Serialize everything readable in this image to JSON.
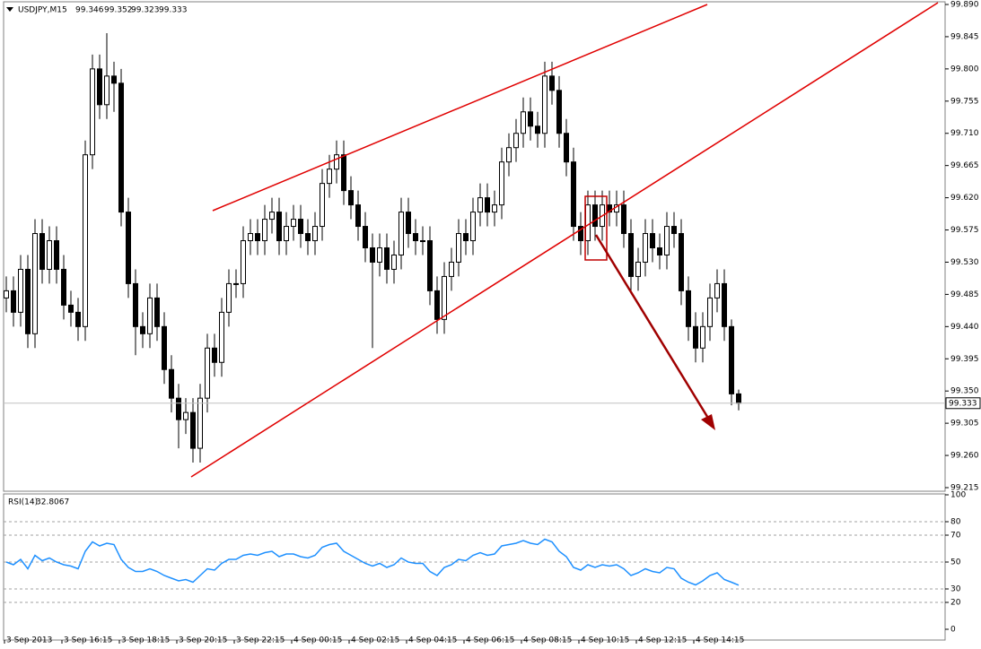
{
  "chart_data": [
    {
      "type": "candlestick",
      "title": "USDJPY,M15",
      "open": [
        99.48,
        99.49,
        99.46,
        99.52,
        99.43,
        99.57,
        99.52,
        99.56,
        99.52,
        99.47,
        99.46,
        99.44,
        99.68,
        99.8,
        99.75,
        99.79,
        99.78,
        99.6,
        99.5,
        99.44,
        99.43,
        99.48,
        99.44,
        99.38,
        99.34,
        99.31,
        99.32,
        99.27,
        99.34,
        99.41,
        99.39,
        99.46,
        99.5,
        99.5,
        99.56,
        99.57,
        99.56,
        99.59,
        99.6,
        99.56,
        99.58,
        99.59,
        99.57,
        99.56,
        99.58,
        99.64,
        99.66,
        99.68,
        99.63,
        99.61,
        99.58,
        99.55,
        99.53,
        99.55,
        99.52,
        99.54,
        99.6,
        99.57,
        99.56,
        99.56,
        99.49,
        99.45,
        99.51,
        99.53,
        99.57,
        99.56,
        99.6,
        99.62,
        99.6,
        99.61,
        99.67,
        99.69,
        99.71,
        99.74,
        99.72,
        99.71,
        99.79,
        99.77,
        99.71,
        99.67,
        99.58,
        99.56,
        99.61,
        99.58,
        99.61,
        99.6,
        99.61,
        99.57,
        99.51,
        99.53,
        99.57,
        99.55,
        99.54,
        99.58,
        99.57,
        99.49,
        99.44,
        99.41,
        99.44,
        99.48,
        99.5,
        99.44,
        99.346
      ],
      "high": [
        99.51,
        99.51,
        99.54,
        99.54,
        99.59,
        99.59,
        99.58,
        99.58,
        99.54,
        99.49,
        99.48,
        99.7,
        99.82,
        99.82,
        99.85,
        99.81,
        99.8,
        99.62,
        99.52,
        99.46,
        99.5,
        99.5,
        99.46,
        99.4,
        99.36,
        99.34,
        99.34,
        99.36,
        99.43,
        99.43,
        99.48,
        99.52,
        99.52,
        99.58,
        99.59,
        99.59,
        99.61,
        99.62,
        99.62,
        99.6,
        99.61,
        99.61,
        99.59,
        99.6,
        99.66,
        99.68,
        99.7,
        99.7,
        99.65,
        99.63,
        99.6,
        99.57,
        99.57,
        99.57,
        99.56,
        99.62,
        99.62,
        99.59,
        99.58,
        99.58,
        99.51,
        99.53,
        99.55,
        99.59,
        99.59,
        99.62,
        99.64,
        99.64,
        99.63,
        99.69,
        99.71,
        99.73,
        99.76,
        99.76,
        99.74,
        99.81,
        99.81,
        99.79,
        99.73,
        99.69,
        99.6,
        99.63,
        99.63,
        99.63,
        99.63,
        99.63,
        99.63,
        99.59,
        99.55,
        99.59,
        99.59,
        99.57,
        99.6,
        99.6,
        99.59,
        99.51,
        99.46,
        99.46,
        99.5,
        99.52,
        99.52,
        99.45,
        99.352
      ],
      "low": [
        99.46,
        99.44,
        99.44,
        99.41,
        99.41,
        99.5,
        99.5,
        99.5,
        99.45,
        99.44,
        99.42,
        99.42,
        99.66,
        99.73,
        99.73,
        99.74,
        99.58,
        99.48,
        99.4,
        99.41,
        99.41,
        99.42,
        99.36,
        99.32,
        99.27,
        99.29,
        99.25,
        99.25,
        99.32,
        99.37,
        99.37,
        99.44,
        99.48,
        99.48,
        99.54,
        99.54,
        99.54,
        99.57,
        99.54,
        99.54,
        99.56,
        99.55,
        99.54,
        99.54,
        99.56,
        99.62,
        99.64,
        99.61,
        99.59,
        99.56,
        99.53,
        99.41,
        99.51,
        99.5,
        99.5,
        99.52,
        99.55,
        99.54,
        99.54,
        99.47,
        99.43,
        99.43,
        99.49,
        99.51,
        99.54,
        99.54,
        99.58,
        99.58,
        99.58,
        99.59,
        99.65,
        99.67,
        99.69,
        99.7,
        99.69,
        99.69,
        99.75,
        99.69,
        99.65,
        99.56,
        99.54,
        99.54,
        99.56,
        99.56,
        99.58,
        99.58,
        99.55,
        99.49,
        99.49,
        99.51,
        99.53,
        99.52,
        99.52,
        99.55,
        99.47,
        99.42,
        99.39,
        99.39,
        99.42,
        99.46,
        99.42,
        99.33,
        99.323
      ],
      "close": [
        99.49,
        99.46,
        99.52,
        99.43,
        99.57,
        99.52,
        99.56,
        99.52,
        99.47,
        99.46,
        99.44,
        99.68,
        99.8,
        99.75,
        99.79,
        99.78,
        99.6,
        99.5,
        99.44,
        99.43,
        99.48,
        99.44,
        99.38,
        99.34,
        99.31,
        99.32,
        99.27,
        99.34,
        99.41,
        99.39,
        99.46,
        99.5,
        99.5,
        99.56,
        99.57,
        99.56,
        99.59,
        99.6,
        99.56,
        99.58,
        99.59,
        99.57,
        99.56,
        99.58,
        99.64,
        99.66,
        99.68,
        99.63,
        99.61,
        99.58,
        99.55,
        99.53,
        99.55,
        99.52,
        99.54,
        99.6,
        99.57,
        99.56,
        99.56,
        99.49,
        99.45,
        99.51,
        99.53,
        99.57,
        99.56,
        99.6,
        99.62,
        99.6,
        99.61,
        99.67,
        99.69,
        99.71,
        99.74,
        99.72,
        99.71,
        99.79,
        99.77,
        99.71,
        99.67,
        99.58,
        99.56,
        99.61,
        99.58,
        99.61,
        99.6,
        99.61,
        99.57,
        99.51,
        99.53,
        99.57,
        99.55,
        99.54,
        99.58,
        99.57,
        99.49,
        99.44,
        99.41,
        99.44,
        99.48,
        99.5,
        99.44,
        99.346,
        99.333
      ],
      "up_color": "#ffffff",
      "down_color": "#000000",
      "border_color": "#000000",
      "ylim": [
        99.215,
        99.89
      ],
      "yticks": [
        {
          "value": 99.89,
          "label": "99.890"
        },
        99.845,
        {
          "value": 99.8,
          "label": "99.800"
        },
        99.755,
        {
          "value": 99.71,
          "label": "99.710"
        },
        99.665,
        {
          "value": 99.62,
          "label": "99.620"
        },
        99.575,
        {
          "value": 99.53,
          "label": "99.530"
        },
        99.485,
        {
          "value": 99.44,
          "label": "99.440"
        },
        99.395,
        {
          "value": 99.35,
          "label": "99.350"
        },
        99.305,
        {
          "value": 99.26,
          "label": "99.260"
        },
        99.215
      ],
      "xticks": [
        {
          "value": 0,
          "label": "3 Sep 2013"
        },
        {
          "value": 8,
          "label": "3 Sep 16:15"
        },
        {
          "value": 16,
          "label": "3 Sep 18:15"
        },
        {
          "value": 24,
          "label": "3 Sep 20:15"
        },
        {
          "value": 32,
          "label": "3 Sep 22:15"
        },
        {
          "value": 40,
          "label": "4 Sep 00:15"
        },
        {
          "value": 48,
          "label": "4 Sep 02:15"
        },
        {
          "value": 56,
          "label": "4 Sep 04:15"
        },
        {
          "value": 64,
          "label": "4 Sep 06:15"
        },
        {
          "value": 72,
          "label": "4 Sep 08:15"
        },
        {
          "value": 80,
          "label": "4 Sep 10:15"
        },
        {
          "value": 88,
          "label": "4 Sep 12:15"
        },
        {
          "value": 96,
          "label": "4 Sep 14:15"
        }
      ]
    },
    {
      "type": "line",
      "title": "RSI(14)",
      "color": "#1e90ff",
      "values": [
        50,
        48,
        52,
        45,
        55,
        51,
        53,
        50,
        48,
        47,
        45,
        58,
        65,
        62,
        64,
        63,
        52,
        46,
        43,
        43,
        45,
        43,
        40,
        38,
        36,
        37,
        35,
        40,
        45,
        44,
        49,
        52,
        52,
        55,
        56,
        55,
        57,
        58,
        54,
        56,
        56,
        54,
        53,
        55,
        61,
        63,
        64,
        58,
        55,
        52,
        49,
        47,
        49,
        46,
        48,
        53,
        50,
        49,
        49,
        43,
        40,
        46,
        48,
        52,
        51,
        55,
        57,
        55,
        56,
        62,
        63,
        64,
        66,
        64,
        63,
        67,
        65,
        58,
        54,
        46,
        44,
        48,
        46,
        48,
        47,
        48,
        45,
        40,
        42,
        45,
        43,
        42,
        46,
        45,
        38,
        35,
        33,
        36,
        40,
        42,
        37,
        35,
        32.8067
      ],
      "ylim": [
        0,
        100
      ],
      "yticks": [
        100,
        80,
        70,
        50,
        30,
        20,
        0
      ],
      "levels": [
        80,
        70,
        50,
        30,
        20
      ]
    }
  ]
}
